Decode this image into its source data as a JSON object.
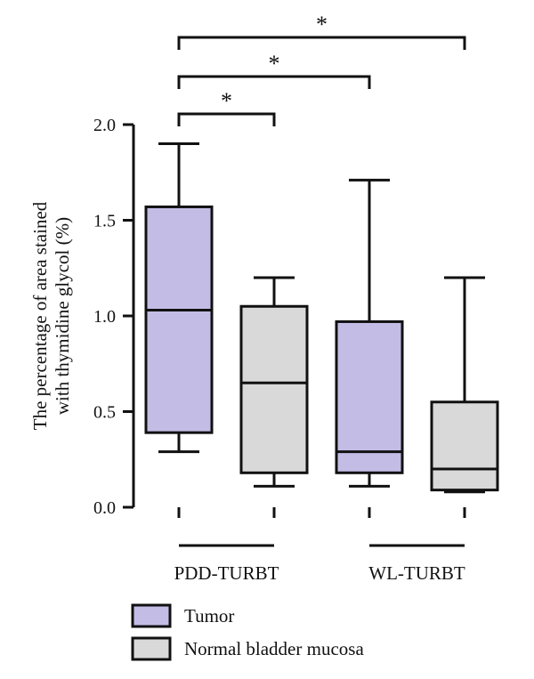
{
  "colors": {
    "tumor": "#c3bde6",
    "normal": "#d9d9d9",
    "stroke": "#111111"
  },
  "chart_data": {
    "type": "box",
    "ylabel_lines": [
      "The percentage of area stained",
      "with thymidine glycol (%)"
    ],
    "ylim": [
      0,
      2.0
    ],
    "yticks": [
      0.0,
      0.5,
      1.0,
      1.5,
      2.0
    ],
    "ytick_labels": [
      "0.0",
      "0.5",
      "1.0",
      "1.5",
      "2.0"
    ],
    "groups": [
      "PDD-TURBT",
      "WL-TURBT"
    ],
    "legend": [
      {
        "key": "tumor",
        "label": "Tumor"
      },
      {
        "key": "normal",
        "label": "Normal bladder mucosa"
      }
    ],
    "boxes": [
      {
        "group": "PDD-TURBT",
        "series": "tumor",
        "min": 0.29,
        "q1": 0.39,
        "median": 1.03,
        "q3": 1.57,
        "max": 1.9
      },
      {
        "group": "PDD-TURBT",
        "series": "normal",
        "min": 0.11,
        "q1": 0.18,
        "median": 0.65,
        "q3": 1.05,
        "max": 1.2
      },
      {
        "group": "WL-TURBT",
        "series": "tumor",
        "min": 0.11,
        "q1": 0.18,
        "median": 0.29,
        "q3": 0.97,
        "max": 1.71
      },
      {
        "group": "WL-TURBT",
        "series": "normal",
        "min": 0.08,
        "q1": 0.09,
        "median": 0.2,
        "q3": 0.55,
        "max": 1.2
      }
    ],
    "significance": [
      {
        "from": 0,
        "to": 1,
        "label": "*"
      },
      {
        "from": 0,
        "to": 2,
        "label": "*"
      },
      {
        "from": 0,
        "to": 3,
        "label": "*"
      }
    ]
  }
}
